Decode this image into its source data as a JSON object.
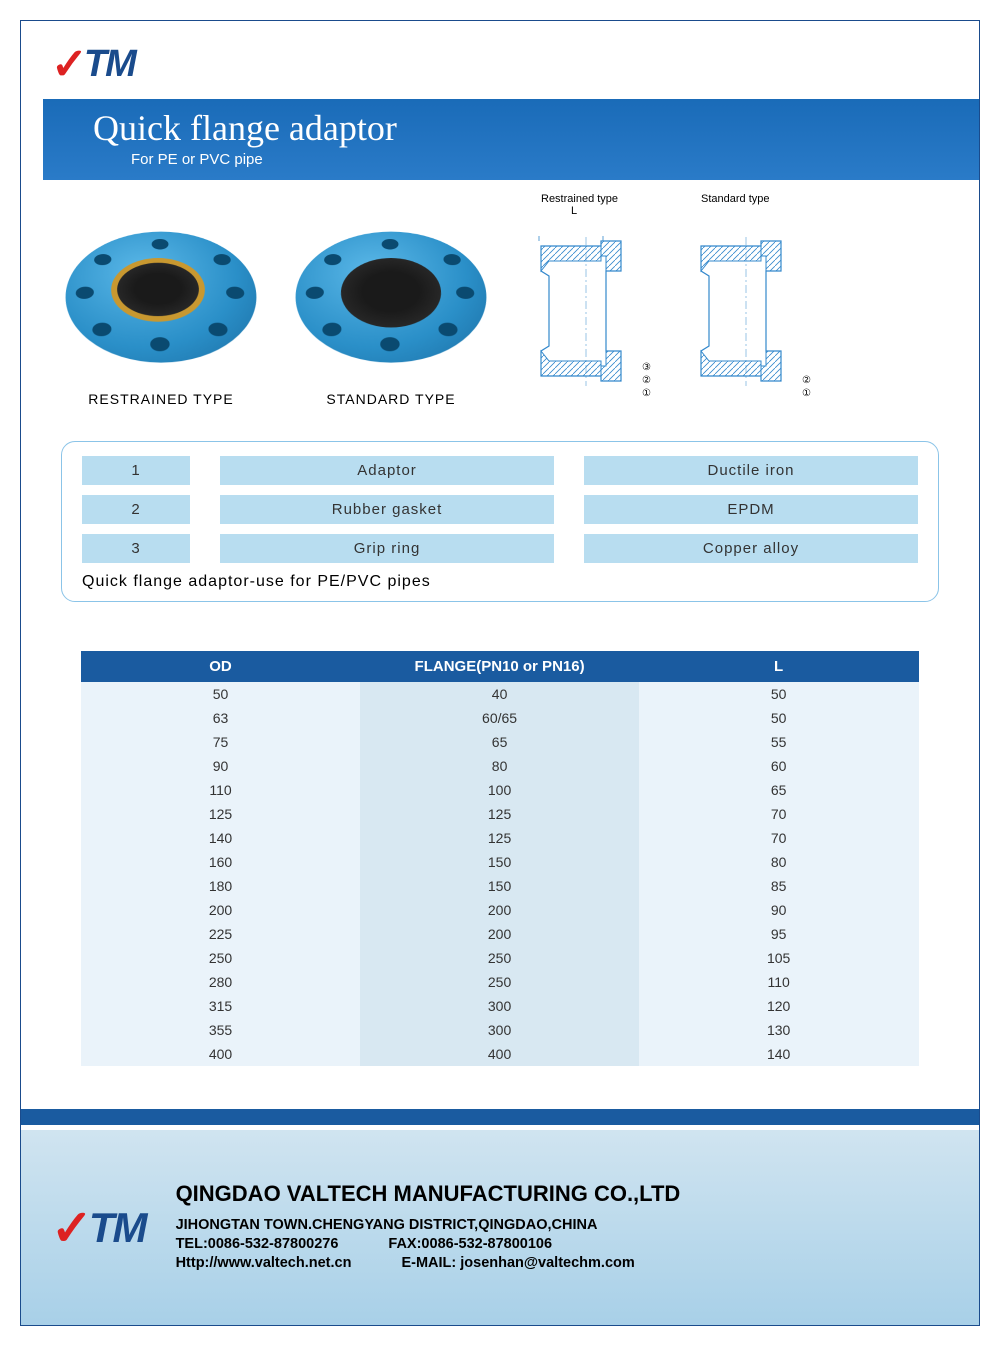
{
  "logo": {
    "check": "✓",
    "text": "TM"
  },
  "title": {
    "main": "Quick flange adaptor",
    "sub": "For PE or PVC pipe"
  },
  "products": {
    "restrained": {
      "label": "RESTRAINED TYPE"
    },
    "standard": {
      "label": "STANDARD TYPE"
    },
    "diag1": {
      "label": "Restrained type",
      "L": "L",
      "c1": "③",
      "c2": "②",
      "c3": "①"
    },
    "diag2": {
      "label": "Standard type",
      "c2": "②",
      "c3": "①"
    }
  },
  "materials": {
    "rows": [
      {
        "num": "1",
        "part": "Adaptor",
        "material": "Ductile iron"
      },
      {
        "num": "2",
        "part": "Rubber gasket",
        "material": "EPDM"
      },
      {
        "num": "3",
        "part": "Grip ring",
        "material": "Copper alloy"
      }
    ],
    "note": "Quick flange adaptor-use for PE/PVC pipes"
  },
  "spec": {
    "headers": {
      "od": "OD",
      "flange": "FLANGE(PN10 or PN16)",
      "l": "L"
    },
    "rows": [
      {
        "od": "50",
        "flange": "40",
        "l": "50"
      },
      {
        "od": "63",
        "flange": "60/65",
        "l": "50"
      },
      {
        "od": "75",
        "flange": "65",
        "l": "55"
      },
      {
        "od": "90",
        "flange": "80",
        "l": "60"
      },
      {
        "od": "110",
        "flange": "100",
        "l": "65"
      },
      {
        "od": "125",
        "flange": "125",
        "l": "70"
      },
      {
        "od": "140",
        "flange": "125",
        "l": "70"
      },
      {
        "od": "160",
        "flange": "150",
        "l": "80"
      },
      {
        "od": "180",
        "flange": "150",
        "l": "85"
      },
      {
        "od": "200",
        "flange": "200",
        "l": "90"
      },
      {
        "od": "225",
        "flange": "200",
        "l": "95"
      },
      {
        "od": "250",
        "flange": "250",
        "l": "105"
      },
      {
        "od": "280",
        "flange": "250",
        "l": "110"
      },
      {
        "od": "315",
        "flange": "300",
        "l": "120"
      },
      {
        "od": "355",
        "flange": "300",
        "l": "130"
      },
      {
        "od": "400",
        "flange": "400",
        "l": "140"
      }
    ]
  },
  "footer": {
    "company": "QINGDAO VALTECH MANUFACTURING CO.,LTD",
    "address": "JIHONGTAN TOWN.CHENGYANG DISTRICT,QINGDAO,CHINA",
    "tel": "TEL:0086-532-87800276",
    "fax": "FAX:0086-532-87800106",
    "url": "Http://www.valtech.net.cn",
    "email": "E-MAIL: josenhan@valtechm.com"
  },
  "colors": {
    "brand_blue": "#1a4b8c",
    "title_bg": "#2a7bc8",
    "mat_bg": "#b8ddf0",
    "header_bg": "#1a5ba0",
    "body_bg": "#eaf3fa",
    "flange_col_bg": "#d8e8f2",
    "footer_grad_top": "#d0e4f0",
    "footer_grad_bottom": "#a8d0e8",
    "flange_blue": "#2a8fc8",
    "logo_red": "#d22"
  }
}
